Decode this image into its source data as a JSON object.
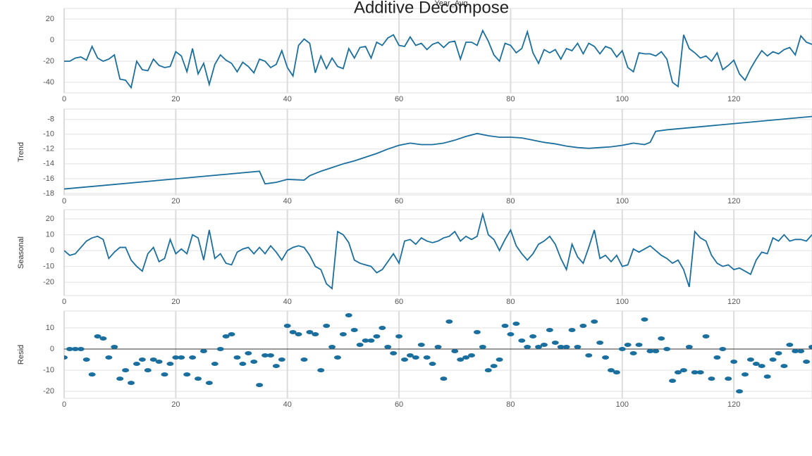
{
  "chart_data": [
    {
      "type": "line",
      "title": "Additive Decompose",
      "ylabel": "Year_Avg",
      "color": "#1b6f9e",
      "grid": true,
      "xlim": [
        0,
        134
      ],
      "xticks": [
        0,
        20,
        40,
        60,
        80,
        100,
        120
      ],
      "ylim": [
        -50,
        30
      ],
      "yticks": [
        -40,
        -20,
        0,
        20
      ],
      "x": [
        0,
        1,
        2,
        3,
        4,
        5,
        6,
        7,
        8,
        9,
        10,
        11,
        12,
        13,
        14,
        15,
        16,
        17,
        18,
        19,
        20,
        21,
        22,
        23,
        24,
        25,
        26,
        27,
        28,
        29,
        30,
        31,
        32,
        33,
        34,
        35,
        36,
        37,
        38,
        39,
        40,
        41,
        42,
        43,
        44,
        45,
        46,
        47,
        48,
        49,
        50,
        51,
        52,
        53,
        54,
        55,
        56,
        57,
        58,
        59,
        60,
        61,
        62,
        63,
        64,
        65,
        66,
        67,
        68,
        69,
        70,
        71,
        72,
        73,
        74,
        75,
        76,
        77,
        78,
        79,
        80,
        81,
        82,
        83,
        84,
        85,
        86,
        87,
        88,
        89,
        90,
        91,
        92,
        93,
        94,
        95,
        96,
        97,
        98,
        99,
        100,
        101,
        102,
        103,
        104,
        105,
        106,
        107,
        108,
        109,
        110,
        111,
        112,
        113,
        114,
        115,
        116,
        117,
        118,
        119,
        120,
        121,
        122,
        123,
        124,
        125,
        126,
        127,
        128,
        129,
        130,
        131,
        132,
        133,
        134
      ],
      "values": [
        -20,
        -20,
        -17,
        -16,
        -19,
        -6,
        -17,
        -20,
        -18,
        -14,
        -37,
        -38,
        -45,
        -20,
        -28,
        -29,
        -18,
        -24,
        -26,
        -25,
        -11,
        -15,
        -30,
        -8,
        -32,
        -22,
        -42,
        -23,
        -14,
        -19,
        -22,
        -30,
        -21,
        -25,
        -31,
        -18,
        -20,
        -26,
        -23,
        -10,
        -26,
        -34,
        -5,
        1,
        -3,
        -31,
        -15,
        -27,
        -17,
        -25,
        -27,
        -8,
        -17,
        -7,
        -6,
        -17,
        -2,
        -5,
        2,
        5,
        -5,
        -6,
        3,
        -5,
        -3,
        -9,
        -4,
        -2,
        -7,
        -2,
        -1,
        -18,
        -2,
        -2,
        -5,
        9,
        -1,
        -14,
        -20,
        -3,
        -5,
        -12,
        -8,
        8,
        -12,
        -22,
        -9,
        -12,
        -9,
        -18,
        -8,
        -10,
        -3,
        -13,
        -3,
        -6,
        -13,
        -6,
        -8,
        -16,
        -10,
        -26,
        -30,
        -12,
        -13,
        -13,
        -15,
        -11,
        -18,
        -40,
        -44,
        5,
        -8,
        -12,
        -17,
        -15,
        -20,
        -12,
        -28,
        -24,
        -19,
        -32,
        -38,
        -27,
        -18,
        -10,
        -15,
        -11,
        -13,
        -9,
        -7,
        -14,
        4,
        -2,
        -4
      ]
    },
    {
      "type": "line",
      "ylabel": "Trend",
      "color": "#1b6f9e",
      "grid": true,
      "xlim": [
        0,
        134
      ],
      "xticks": [
        0,
        20,
        40,
        60,
        80,
        100,
        120
      ],
      "ylim": [
        -18.2,
        -6.6
      ],
      "yticks": [
        -18,
        -16,
        -14,
        -12,
        -10,
        -8
      ],
      "x": [
        0,
        35,
        36,
        38,
        40,
        43,
        44,
        46,
        48,
        50,
        52,
        54,
        56,
        58,
        60,
        62,
        64,
        66,
        68,
        70,
        72,
        74,
        76,
        78,
        80,
        82,
        84,
        86,
        88,
        90,
        92,
        94,
        96,
        98,
        100,
        102,
        104,
        105,
        106,
        108,
        134
      ],
      "values": [
        -17.4,
        -15,
        -16.7,
        -16.5,
        -16.1,
        -16.2,
        -15.6,
        -15,
        -14.5,
        -14,
        -13.6,
        -13.1,
        -12.6,
        -12,
        -11.5,
        -11.2,
        -11.4,
        -11.4,
        -11.2,
        -10.8,
        -10.3,
        -9.9,
        -10.2,
        -10.4,
        -10.4,
        -10.5,
        -10.8,
        -11.1,
        -11.3,
        -11.6,
        -11.8,
        -11.9,
        -11.8,
        -11.7,
        -11.5,
        -11.2,
        -11.4,
        -11.1,
        -9.6,
        -9.4,
        -7.6
      ]
    },
    {
      "type": "line",
      "ylabel": "Seasonal",
      "color": "#1b6f9e",
      "grid": true,
      "xlim": [
        0,
        134
      ],
      "xticks": [
        0,
        20,
        40,
        60,
        80,
        100,
        120
      ],
      "ylim": [
        -28.4,
        25.8
      ],
      "yticks": [
        -20,
        -10,
        0,
        10,
        20
      ],
      "x": [
        0,
        1,
        2,
        3,
        4,
        5,
        6,
        7,
        8,
        9,
        10,
        11,
        12,
        13,
        14,
        15,
        16,
        17,
        18,
        19,
        20,
        21,
        22,
        23,
        24,
        25,
        26,
        27,
        28,
        29,
        30,
        31,
        32,
        33,
        34,
        35,
        36,
        37,
        38,
        39,
        40,
        41,
        42,
        43,
        44,
        45,
        46,
        47,
        48,
        49,
        50,
        51,
        52,
        53,
        54,
        55,
        56,
        57,
        58,
        59,
        60,
        61,
        62,
        63,
        64,
        65,
        66,
        67,
        68,
        69,
        70,
        71,
        72,
        73,
        74,
        75,
        76,
        77,
        78,
        79,
        80,
        81,
        82,
        83,
        84,
        85,
        86,
        87,
        88,
        89,
        90,
        91,
        92,
        93,
        94,
        95,
        96,
        97,
        98,
        99,
        100,
        101,
        102,
        103,
        104,
        105,
        106,
        107,
        108,
        109,
        110,
        111,
        112,
        113,
        114,
        115,
        116,
        117,
        118,
        119,
        120,
        121,
        122,
        123,
        124,
        125,
        126,
        127,
        128,
        129,
        130,
        131,
        132,
        133,
        134
      ],
      "values": [
        0,
        -3,
        -2,
        2,
        6,
        8,
        9,
        7,
        -5,
        -1,
        2,
        2,
        -6,
        -10,
        -13,
        -2,
        2,
        -7,
        -5,
        7,
        -2,
        1,
        -2,
        10,
        8,
        -6,
        13,
        -5,
        -2,
        -8,
        -9,
        -1,
        1,
        2,
        -2,
        2,
        -2,
        3,
        -1,
        -6,
        0,
        2,
        3,
        2,
        -3,
        -10,
        -12,
        -21,
        -24,
        12,
        10,
        5,
        -6,
        -8,
        -9,
        -10,
        -14,
        -12,
        -7,
        -2,
        -8,
        6,
        7,
        4,
        8,
        6,
        5,
        6,
        8,
        9,
        12,
        6,
        9,
        7,
        9,
        23,
        10,
        7,
        0,
        7,
        13,
        3,
        -2,
        -6,
        -2,
        4,
        6,
        9,
        4,
        -5,
        -12,
        4,
        -4,
        -8,
        2,
        13,
        -5,
        -3,
        -7,
        -3,
        -10,
        -9,
        1,
        -1,
        1,
        3,
        0,
        -3,
        -5,
        -8,
        -6,
        -12,
        -23,
        12,
        8,
        6,
        -3,
        -8,
        -10,
        -9,
        -12,
        -11,
        -13,
        -15,
        -6,
        -1,
        -2,
        8,
        6,
        10,
        6,
        7,
        7,
        6,
        10
      ]
    },
    {
      "type": "scatter",
      "ylabel": "Resid",
      "color": "#1b6f9e",
      "grid": true,
      "hline": 0,
      "xlim": [
        0,
        134
      ],
      "xticks": [
        0,
        20,
        40,
        60,
        80,
        100,
        120
      ],
      "ylim": [
        -23.3,
        18
      ],
      "yticks": [
        -20,
        -10,
        0,
        10
      ],
      "x": [
        0,
        1,
        2,
        3,
        4,
        5,
        6,
        7,
        8,
        9,
        10,
        11,
        12,
        13,
        14,
        15,
        16,
        17,
        18,
        19,
        20,
        21,
        22,
        23,
        24,
        25,
        26,
        27,
        28,
        29,
        30,
        31,
        32,
        33,
        34,
        35,
        36,
        37,
        38,
        39,
        40,
        41,
        42,
        43,
        44,
        45,
        46,
        47,
        48,
        49,
        50,
        51,
        52,
        53,
        54,
        55,
        56,
        57,
        58,
        59,
        60,
        61,
        62,
        63,
        64,
        65,
        66,
        67,
        68,
        69,
        70,
        71,
        72,
        73,
        74,
        75,
        76,
        77,
        78,
        79,
        80,
        81,
        82,
        83,
        84,
        85,
        86,
        87,
        88,
        89,
        90,
        91,
        92,
        93,
        94,
        95,
        96,
        97,
        98,
        99,
        100,
        101,
        102,
        103,
        104,
        105,
        106,
        107,
        108,
        109,
        110,
        111,
        112,
        113,
        114,
        115,
        116,
        117,
        118,
        119,
        120,
        121,
        122,
        123,
        124,
        125,
        126,
        127,
        128,
        129,
        130,
        131,
        132,
        133,
        134
      ],
      "values": [
        -4,
        0,
        0,
        0,
        -5,
        -12,
        6,
        5,
        -4,
        1,
        -14,
        -10,
        -16,
        -7,
        -5,
        -10,
        -5,
        -6,
        -12,
        -7,
        -4,
        -4,
        -12,
        -4,
        -14,
        -1,
        -16,
        -7,
        0,
        6,
        7,
        -4,
        -7,
        -2,
        -6,
        -17,
        -3,
        -3,
        -8,
        -5,
        11,
        8,
        7,
        -5,
        8,
        7,
        -10,
        11,
        1,
        -4,
        7,
        16,
        9,
        2,
        4,
        4,
        6,
        10,
        1,
        -2,
        6,
        -5,
        -3,
        -4,
        2,
        -4,
        -7,
        1,
        -14,
        13,
        -1,
        -5,
        -4,
        -3,
        8,
        1,
        -10,
        -8,
        -5,
        11,
        7,
        12,
        4,
        1,
        6,
        1,
        2,
        9,
        3,
        1,
        1,
        9,
        1,
        11,
        -3,
        13,
        3,
        -4,
        -10,
        -11,
        0,
        2,
        -2,
        2,
        14,
        -1,
        -1,
        5,
        0,
        -15,
        -11,
        -10,
        1,
        -11,
        -11,
        6,
        -14,
        -4,
        0,
        -14,
        -6,
        -20,
        -12,
        -5,
        -7,
        -8,
        -13,
        -5,
        -2,
        -8,
        2,
        -1,
        -1,
        -6,
        1
      ]
    }
  ]
}
